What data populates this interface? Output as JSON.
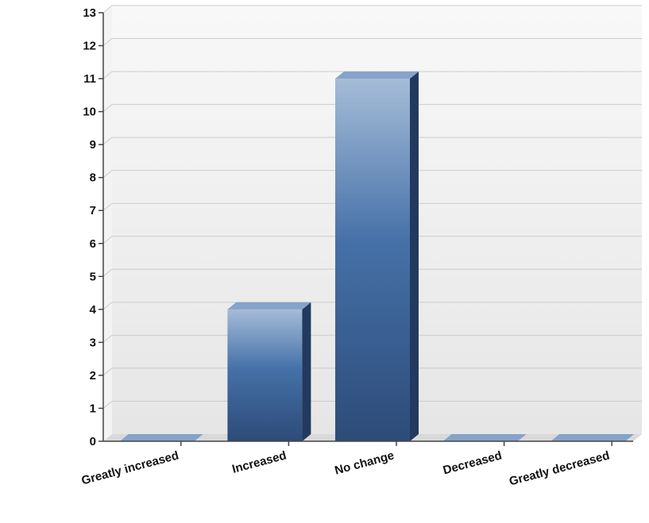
{
  "chart_data": {
    "type": "bar",
    "title": "",
    "xlabel": "",
    "ylabel": "",
    "categories": [
      "Greatly increased",
      "Increased",
      "No change",
      "Decreased",
      "Greatly decreased"
    ],
    "values": [
      0,
      4,
      11,
      0,
      0
    ],
    "ylim": [
      0,
      13
    ],
    "yticks": [
      0,
      1,
      2,
      3,
      4,
      5,
      6,
      7,
      8,
      9,
      10,
      11,
      12,
      13
    ],
    "grid": true,
    "legend": "none",
    "style": "3d",
    "colors": {
      "bar_light": "#a6bcd8",
      "bar_mid": "#4571a8",
      "bar_dark": "#2d4b78",
      "bar_side": "#223a5e",
      "bar_top": "#86a3c8",
      "plot_bg": "#eeeeee",
      "grid": "#cccccc"
    }
  }
}
